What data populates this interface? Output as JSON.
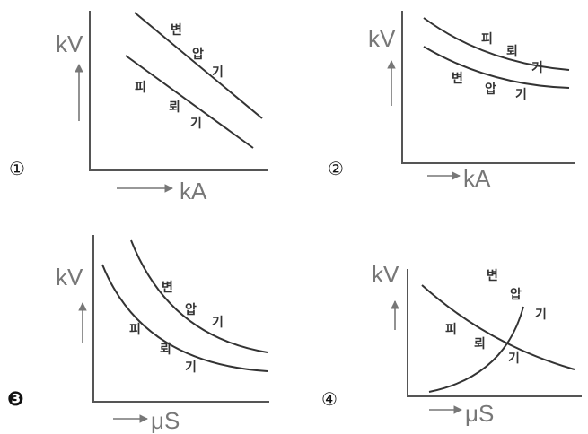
{
  "options": [
    {
      "number": "①",
      "y_unit": "kV",
      "x_unit": "kA",
      "curve_labels": [
        {
          "chars": [
            "변",
            "압",
            "기"
          ]
        },
        {
          "chars": [
            "피",
            "뢰",
            "기"
          ]
        }
      ]
    },
    {
      "number": "②",
      "y_unit": "kV",
      "x_unit": "kA",
      "curve_labels": [
        {
          "chars": [
            "피",
            "뢰",
            "기"
          ]
        },
        {
          "chars": [
            "변",
            "압",
            "기"
          ]
        }
      ]
    },
    {
      "number": "❸",
      "selected": true,
      "y_unit": "kV",
      "x_unit": "μS",
      "curve_labels": [
        {
          "chars": [
            "변",
            "압",
            "기"
          ]
        },
        {
          "chars": [
            "피",
            "뢰",
            "기"
          ]
        }
      ]
    },
    {
      "number": "④",
      "y_unit": "kV",
      "x_unit": "μS",
      "curve_labels": [
        {
          "chars": [
            "변",
            "압",
            "기"
          ]
        },
        {
          "chars": [
            "피",
            "뢰",
            "기"
          ]
        }
      ]
    }
  ]
}
